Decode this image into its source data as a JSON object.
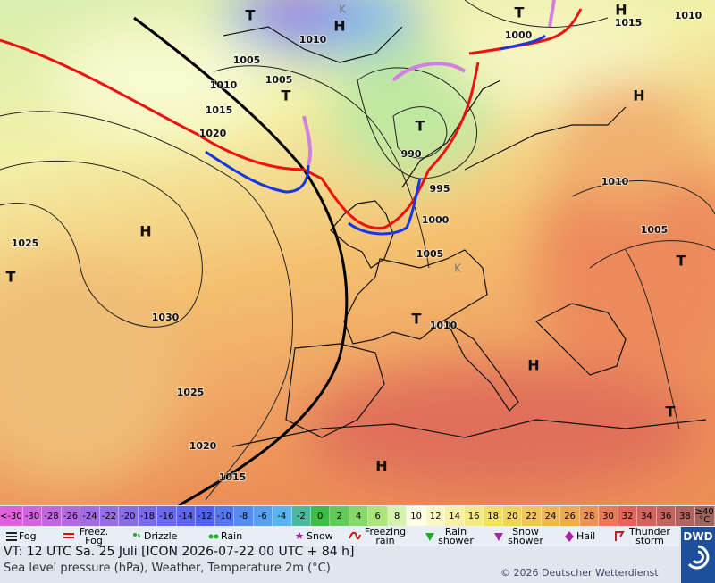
{
  "map": {
    "isobar_labels": [
      1010,
      1005,
      1010,
      1005,
      1015,
      1020,
      1000,
      1015,
      1010,
      990,
      995,
      1000,
      1005,
      1010,
      1005,
      1010,
      1025,
      1030,
      1025,
      1020,
      1015
    ],
    "highs": [
      "H",
      "H",
      "H",
      "H",
      "H",
      "H"
    ],
    "lows": [
      "T",
      "T",
      "T",
      "T",
      "T",
      "T",
      "T",
      "T"
    ],
    "other_markers": [
      "K",
      "K"
    ]
  },
  "colorbar": {
    "labels": [
      "<-30",
      -30,
      -28,
      -26,
      -24,
      -22,
      -20,
      -18,
      -16,
      -14,
      -12,
      -10,
      -8,
      -6,
      -4,
      -2,
      0,
      2,
      4,
      6,
      8,
      10,
      12,
      14,
      16,
      18,
      20,
      22,
      24,
      26,
      28,
      30,
      32,
      34,
      36,
      38,
      "≥40 °C"
    ]
  },
  "legend": {
    "items": [
      "Fog",
      "Freez. Fog",
      "Drizzle",
      "Rain",
      "Snow",
      "Freezing rain",
      "Rain shower",
      "Snow shower",
      "Hail",
      "Thunder storm"
    ]
  },
  "footer": {
    "valid_time": "VT: 12 UTC Sa.  25 Juli [ICON 2026-07-22  00 UTC + 84 h]",
    "description": "Sea level pressure (hPa), Weather, Temperature 2m (°C)",
    "copyright": "© 2026 Deutscher Wetterdienst",
    "logo": "DWD"
  }
}
